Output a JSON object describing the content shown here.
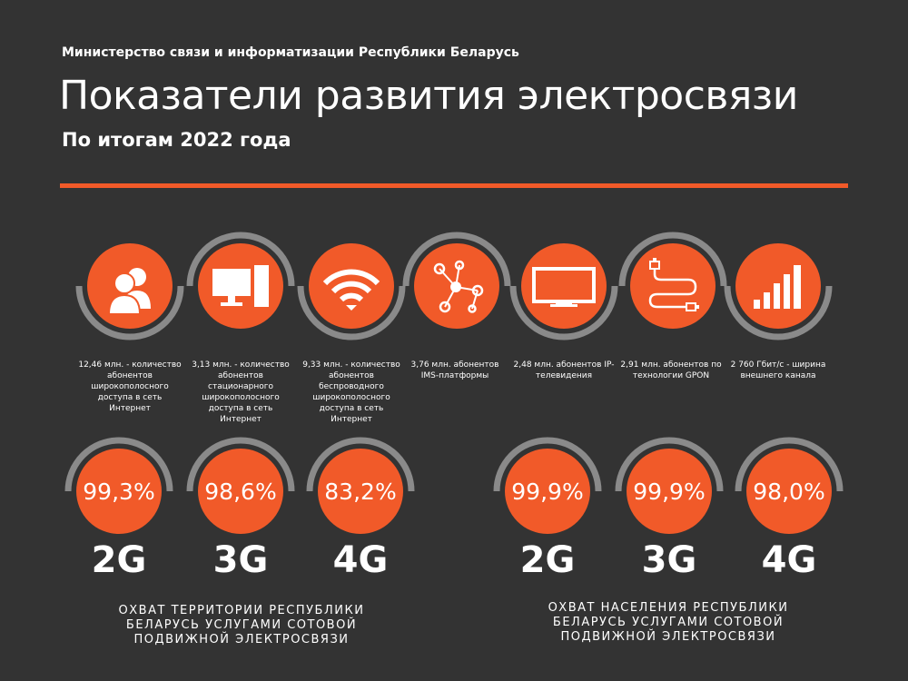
{
  "header": {
    "organization": "Министерство связи и информатизации Республики Беларусь",
    "title": "Показатели развития электросвязи",
    "subtitle": "По итогам 2022 года"
  },
  "colors": {
    "background": "#333333",
    "accent": "#f15a29",
    "arc": "#8a8a8a",
    "text": "#ffffff"
  },
  "stats": [
    {
      "icon": "users-icon",
      "caption": "12,46 млн. - количество абонентов широкополосного доступа в сеть Интернет"
    },
    {
      "icon": "desktop-computer-icon",
      "caption": "3,13 млн. - количество абонентов стационарного широкополосного доступа в сеть Интернет"
    },
    {
      "icon": "wifi-icon",
      "caption": "9,33 млн. - количество абонентов беспроводного широкополосного доступа в сеть Интернет"
    },
    {
      "icon": "network-nodes-icon",
      "caption": "3,76 млн. абонентов IMS-платформы"
    },
    {
      "icon": "tv-screen-icon",
      "caption": "2,48 млн. абонентов IP-телевидения"
    },
    {
      "icon": "fiber-cable-icon",
      "caption": "2,91 млн. абонентов по технологии GPON"
    },
    {
      "icon": "signal-bars-icon",
      "caption": "2 760 Гбит/с - ширина внешнего канала"
    }
  ],
  "territory_coverage": {
    "caption": "ОХВАТ ТЕРРИТОРИИ РЕСПУБЛИКИ БЕЛАРУСЬ УСЛУГАМИ СОТОВОЙ ПОДВИЖНОЙ ЭЛЕКТРОСВЯЗИ",
    "items": [
      {
        "percent": "99,3%",
        "generation": "2G"
      },
      {
        "percent": "98,6%",
        "generation": "3G"
      },
      {
        "percent": "83,2%",
        "generation": "4G"
      }
    ]
  },
  "population_coverage": {
    "caption": "ОХВАТ НАСЕЛЕНИЯ РЕСПУБЛИКИ БЕЛАРУСЬ УСЛУГАМИ СОТОВОЙ ПОДВИЖНОЙ ЭЛЕКТРОСВЯЗИ",
    "items": [
      {
        "percent": "99,9%",
        "generation": "2G"
      },
      {
        "percent": "99,9%",
        "generation": "3G"
      },
      {
        "percent": "98,0%",
        "generation": "4G"
      }
    ]
  }
}
